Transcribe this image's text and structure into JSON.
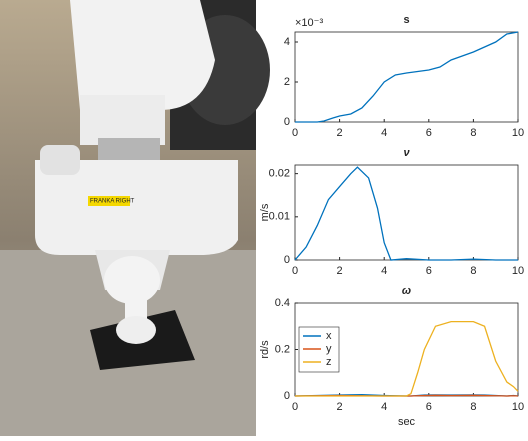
{
  "photo": {
    "label": "FRANKA RIGHT"
  },
  "chart_data": [
    {
      "type": "line",
      "title": "s",
      "y_multiplier": "×10⁻³",
      "x": [
        0,
        1,
        1.3,
        1.7,
        2,
        2.5,
        3,
        3.5,
        4,
        4.5,
        5,
        6,
        6.5,
        7,
        8,
        9,
        9.5,
        10
      ],
      "series": [
        {
          "color": "#0072bd",
          "values": [
            0,
            0,
            0.05,
            0.2,
            0.3,
            0.4,
            0.7,
            1.3,
            2.0,
            2.35,
            2.45,
            2.6,
            2.75,
            3.1,
            3.5,
            4.0,
            4.4,
            4.5
          ]
        }
      ],
      "xlim": [
        0,
        10
      ],
      "xticks": [
        0,
        2,
        4,
        6,
        8,
        10
      ],
      "ylim": [
        0,
        4.5
      ],
      "yticks": [
        0,
        2,
        4
      ]
    },
    {
      "type": "line",
      "title": "ν",
      "ylabel": "m/s",
      "x": [
        0,
        0.5,
        1,
        1.5,
        2,
        2.5,
        2.8,
        3.3,
        3.7,
        4,
        4.3,
        5,
        6,
        7,
        8,
        9,
        10
      ],
      "series": [
        {
          "color": "#0072bd",
          "values": [
            0,
            0.003,
            0.008,
            0.014,
            0.017,
            0.02,
            0.0215,
            0.019,
            0.012,
            0.004,
            0,
            0.0003,
            0,
            0,
            0.0002,
            0,
            0
          ]
        }
      ],
      "xlim": [
        0,
        10
      ],
      "xticks": [
        0,
        2,
        4,
        6,
        8,
        10
      ],
      "ylim": [
        0,
        0.022
      ],
      "yticks": [
        0,
        0.01,
        0.02
      ]
    },
    {
      "type": "line",
      "title": "ω",
      "ylabel": "rd/s",
      "xlabel": "sec",
      "legend": "upper left",
      "x": [
        0,
        1,
        2,
        3,
        4,
        5,
        5.2,
        5.5,
        5.8,
        6.3,
        7,
        8,
        8.5,
        9,
        9.5,
        9.8,
        10
      ],
      "series": [
        {
          "name": "x",
          "color": "#0072bd",
          "values": [
            0,
            0.002,
            0.004,
            0.006,
            0.002,
            0,
            0,
            0.002,
            0.004,
            0.005,
            0.004,
            0.005,
            0.004,
            0.002,
            0,
            0.002,
            0
          ]
        },
        {
          "name": "y",
          "color": "#d95319",
          "values": [
            0,
            0.001,
            0.002,
            0.001,
            0,
            0,
            0,
            0.001,
            0.002,
            0.003,
            0.002,
            0.003,
            0.002,
            0.001,
            0,
            0.001,
            0
          ]
        },
        {
          "name": "z",
          "color": "#edb120",
          "values": [
            0,
            0,
            0,
            0,
            0,
            0,
            0.01,
            0.1,
            0.2,
            0.3,
            0.32,
            0.32,
            0.3,
            0.15,
            0.06,
            0.04,
            0.02
          ]
        }
      ],
      "xlim": [
        0,
        10
      ],
      "xticks": [
        0,
        2,
        4,
        6,
        8,
        10
      ],
      "ylim": [
        0,
        0.4
      ],
      "yticks": [
        0,
        0.2,
        0.4
      ]
    }
  ]
}
